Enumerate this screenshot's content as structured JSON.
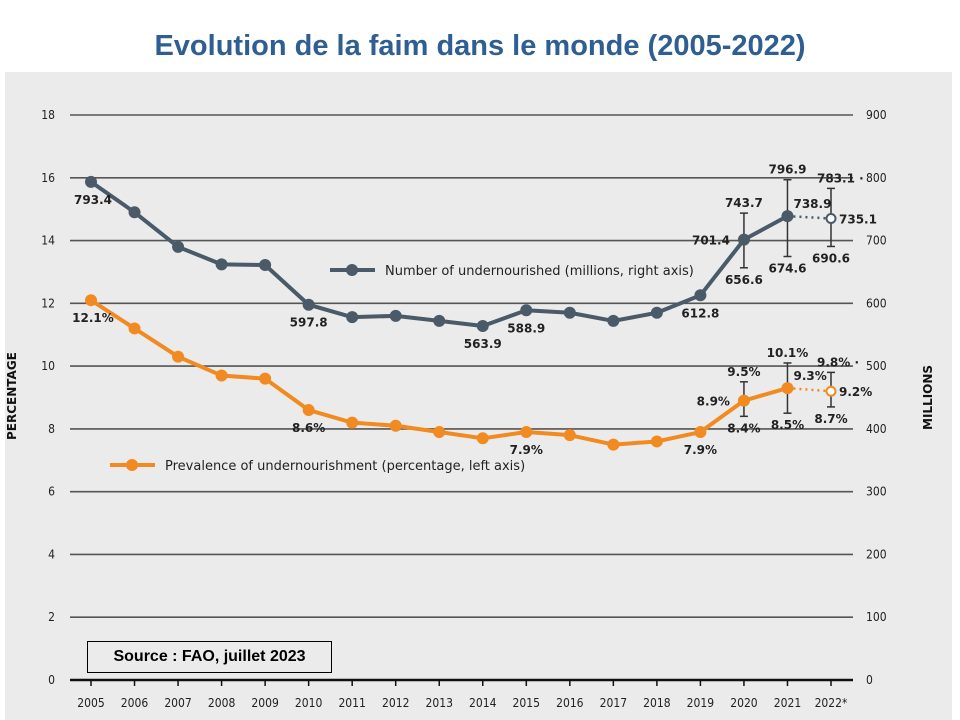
{
  "title": "Evolution de la faim dans le monde (2005-2022)",
  "source": "Source : FAO, juillet 2023",
  "colors": {
    "title": "#2f5e92",
    "undernourished": "#4a5a68",
    "prevalence": "#f28a22",
    "background": "#ebebeb",
    "grid": "#444444"
  },
  "chart_data": {
    "type": "line",
    "title": "Evolution de la faim dans le monde (2005-2022)",
    "x": [
      "2005",
      "2006",
      "2007",
      "2008",
      "2009",
      "2010",
      "2011",
      "2012",
      "2013",
      "2014",
      "2015",
      "2016",
      "2017",
      "2018",
      "2019",
      "2020",
      "2021",
      "2022*"
    ],
    "left_axis": {
      "label": "PERCENTAGE",
      "ylim": [
        0,
        18
      ],
      "ticks": [
        "0",
        "2",
        "4",
        "6",
        "8",
        "10",
        "12",
        "14",
        "16",
        "18"
      ]
    },
    "right_axis": {
      "label": "MILLIONS",
      "ylim": [
        0,
        900
      ],
      "ticks": [
        "0",
        "100",
        "200",
        "300",
        "400",
        "500",
        "600",
        "700",
        "800",
        "900"
      ]
    },
    "grid": true,
    "series": [
      {
        "name": "Number of undernourished (millions, right axis)",
        "axis": "right",
        "values": [
          793.4,
          745,
          690,
          662,
          661,
          597.8,
          578,
          580,
          572,
          563.9,
          588.9,
          585,
          572,
          585,
          612.8,
          701.4,
          738.9,
          735.1
        ],
        "projected_from_index": 16,
        "ranges": [
          {
            "x": "2020",
            "low": 656.6,
            "high": 743.7
          },
          {
            "x": "2021",
            "low": 674.6,
            "high": 796.9
          },
          {
            "x": "2022*",
            "low": 690.6,
            "high": 783.1
          }
        ],
        "labels": [
          {
            "i": 0,
            "text": "793.4",
            "pos": "below"
          },
          {
            "i": 5,
            "text": "597.8",
            "pos": "below"
          },
          {
            "i": 9,
            "text": "563.9",
            "pos": "below"
          },
          {
            "i": 10,
            "text": "588.9",
            "pos": "below"
          },
          {
            "i": 14,
            "text": "612.8",
            "pos": "below"
          },
          {
            "i": 15,
            "text": "701.4",
            "pos": "left"
          },
          {
            "i": 15,
            "text": "743.7",
            "pos": "high"
          },
          {
            "i": 15,
            "text": "656.6",
            "pos": "low"
          },
          {
            "i": 16,
            "text": "738.9",
            "pos": "right-above"
          },
          {
            "i": 16,
            "text": "796.9",
            "pos": "high"
          },
          {
            "i": 16,
            "text": "674.6",
            "pos": "low"
          },
          {
            "i": 17,
            "text": "735.1",
            "pos": "right"
          },
          {
            "i": 17,
            "text": "783.1 ·",
            "pos": "high"
          },
          {
            "i": 17,
            "text": "690.6",
            "pos": "low"
          }
        ]
      },
      {
        "name": "Prevalence of undernourishment (percentage, left axis)",
        "axis": "left",
        "values": [
          12.1,
          11.2,
          10.3,
          9.7,
          9.6,
          8.6,
          8.2,
          8.1,
          7.9,
          7.7,
          7.9,
          7.8,
          7.5,
          7.6,
          7.9,
          8.9,
          9.3,
          9.2
        ],
        "projected_from_index": 16,
        "ranges": [
          {
            "x": "2020",
            "low": 8.4,
            "high": 9.5
          },
          {
            "x": "2021",
            "low": 8.5,
            "high": 10.1
          },
          {
            "x": "2022*",
            "low": 8.7,
            "high": 9.8
          }
        ],
        "labels": [
          {
            "i": 0,
            "text": "12.1%",
            "pos": "below"
          },
          {
            "i": 5,
            "text": "8.6%",
            "pos": "below"
          },
          {
            "i": 10,
            "text": "7.9%",
            "pos": "below"
          },
          {
            "i": 14,
            "text": "7.9%",
            "pos": "below"
          },
          {
            "i": 15,
            "text": "8.9%",
            "pos": "left"
          },
          {
            "i": 15,
            "text": "9.5%",
            "pos": "high"
          },
          {
            "i": 15,
            "text": "8.4%",
            "pos": "low"
          },
          {
            "i": 16,
            "text": "9.3%",
            "pos": "right-above"
          },
          {
            "i": 16,
            "text": "10.1%",
            "pos": "high"
          },
          {
            "i": 16,
            "text": "8.5%",
            "pos": "low"
          },
          {
            "i": 17,
            "text": "9.2%",
            "pos": "right"
          },
          {
            "i": 17,
            "text": "9.8% ·",
            "pos": "high"
          },
          {
            "i": 17,
            "text": "8.7%",
            "pos": "low"
          }
        ]
      }
    ],
    "legend": [
      {
        "name": "Number of undernourished (millions, right axis)",
        "placement": "center-upper"
      },
      {
        "name": "Prevalence of undernourishment (percentage, left axis)",
        "placement": "left-middle"
      }
    ]
  }
}
